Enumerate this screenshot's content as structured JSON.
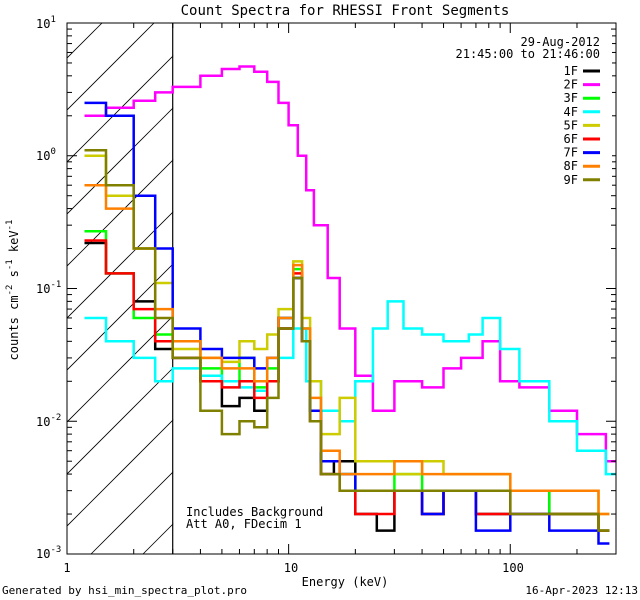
{
  "chart_data": {
    "type": "line",
    "title": "Count Spectra for RHESSI Front Segments",
    "xlabel": "Energy (keV)",
    "ylabel": "counts cm",
    "ylabel_exp1": "-2",
    "ylabel_mid": " s",
    "ylabel_exp2": "-1",
    "ylabel_end": " keV",
    "ylabel_exp3": "-1",
    "x_scale": "log",
    "y_scale": "log",
    "xlim": [
      1,
      300
    ],
    "ylim": [
      0.001,
      10
    ],
    "x_tick_labels": [
      {
        "value": 1,
        "label": "1"
      },
      {
        "value": 10,
        "label": "10"
      },
      {
        "value": 100,
        "label": "100"
      }
    ],
    "y_tick_labels": [
      {
        "value": 10,
        "base": "10",
        "exp": "1"
      },
      {
        "value": 1,
        "base": "10",
        "exp": "0"
      },
      {
        "value": 0.1,
        "base": "10",
        "exp": "-1"
      },
      {
        "value": 0.01,
        "base": "10",
        "exp": "-2"
      },
      {
        "value": 0.001,
        "base": "10",
        "exp": "-3"
      }
    ],
    "hatched_region_max_energy": 3,
    "date": "29-Aug-2012",
    "time_range": "21:45:00 to 21:46:00",
    "annotations": [
      "Includes Background",
      "Att A0, FDecim 1"
    ],
    "series": [
      {
        "name": "1F",
        "color": "#000000",
        "points": [
          [
            1.2,
            0.22
          ],
          [
            1.5,
            0.13
          ],
          [
            2.0,
            0.08
          ],
          [
            2.5,
            0.035
          ],
          [
            3.0,
            0.03
          ],
          [
            4.0,
            0.02
          ],
          [
            5.0,
            0.013
          ],
          [
            6.0,
            0.015
          ],
          [
            7.0,
            0.012
          ],
          [
            8.0,
            0.02
          ],
          [
            9.0,
            0.05
          ],
          [
            10.5,
            0.12
          ],
          [
            11.5,
            0.04
          ],
          [
            12.5,
            0.01
          ],
          [
            14,
            0.004
          ],
          [
            16,
            0.005
          ],
          [
            20,
            0.002
          ],
          [
            25,
            0.0015
          ],
          [
            30,
            0.003
          ],
          [
            40,
            0.002
          ],
          [
            50,
            0.003
          ],
          [
            70,
            0.002
          ],
          [
            100,
            0.003
          ],
          [
            150,
            0.002
          ],
          [
            250,
            0.0015
          ]
        ]
      },
      {
        "name": "2F",
        "color": "#ff00ff",
        "points": [
          [
            1.2,
            2.0
          ],
          [
            1.5,
            2.3
          ],
          [
            2.0,
            2.6
          ],
          [
            2.5,
            3.0
          ],
          [
            3.0,
            3.3
          ],
          [
            4.0,
            4.0
          ],
          [
            5.0,
            4.5
          ],
          [
            6.0,
            4.7
          ],
          [
            7.0,
            4.3
          ],
          [
            8.0,
            3.6
          ],
          [
            9.0,
            2.5
          ],
          [
            10,
            1.7
          ],
          [
            11,
            1.0
          ],
          [
            12,
            0.55
          ],
          [
            13,
            0.3
          ],
          [
            15,
            0.12
          ],
          [
            17,
            0.05
          ],
          [
            20,
            0.022
          ],
          [
            24,
            0.012
          ],
          [
            30,
            0.02
          ],
          [
            40,
            0.018
          ],
          [
            50,
            0.025
          ],
          [
            60,
            0.03
          ],
          [
            75,
            0.04
          ],
          [
            90,
            0.02
          ],
          [
            110,
            0.018
          ],
          [
            150,
            0.012
          ],
          [
            200,
            0.008
          ],
          [
            270,
            0.005
          ]
        ]
      },
      {
        "name": "3F",
        "color": "#00ff00",
        "points": [
          [
            1.2,
            0.27
          ],
          [
            1.5,
            0.13
          ],
          [
            2.0,
            0.06
          ],
          [
            2.5,
            0.045
          ],
          [
            3.0,
            0.04
          ],
          [
            4.0,
            0.025
          ],
          [
            5.0,
            0.02
          ],
          [
            6.0,
            0.03
          ],
          [
            7.0,
            0.018
          ],
          [
            8.0,
            0.025
          ],
          [
            9.0,
            0.06
          ],
          [
            10.5,
            0.14
          ],
          [
            11.5,
            0.05
          ],
          [
            12.5,
            0.012
          ],
          [
            14,
            0.005
          ],
          [
            17,
            0.004
          ],
          [
            20,
            0.003
          ],
          [
            30,
            0.004
          ],
          [
            40,
            0.003
          ],
          [
            50,
            0.003
          ],
          [
            70,
            0.003
          ],
          [
            100,
            0.003
          ],
          [
            150,
            0.002
          ],
          [
            250,
            0.0015
          ]
        ]
      },
      {
        "name": "4F",
        "color": "#00ffff",
        "points": [
          [
            1.2,
            0.06
          ],
          [
            1.5,
            0.04
          ],
          [
            2.0,
            0.03
          ],
          [
            2.5,
            0.02
          ],
          [
            3.0,
            0.025
          ],
          [
            4.0,
            0.022
          ],
          [
            5.0,
            0.02
          ],
          [
            6.0,
            0.018
          ],
          [
            7.0,
            0.017
          ],
          [
            8.0,
            0.02
          ],
          [
            9.0,
            0.03
          ],
          [
            10.5,
            0.05
          ],
          [
            12,
            0.02
          ],
          [
            14,
            0.012
          ],
          [
            17,
            0.01
          ],
          [
            20,
            0.02
          ],
          [
            24,
            0.05
          ],
          [
            28,
            0.08
          ],
          [
            33,
            0.05
          ],
          [
            40,
            0.045
          ],
          [
            50,
            0.04
          ],
          [
            65,
            0.045
          ],
          [
            75,
            0.06
          ],
          [
            90,
            0.035
          ],
          [
            110,
            0.02
          ],
          [
            150,
            0.01
          ],
          [
            200,
            0.006
          ],
          [
            270,
            0.004
          ]
        ]
      },
      {
        "name": "5F",
        "color": "#cccc00",
        "points": [
          [
            1.2,
            1.0
          ],
          [
            1.5,
            0.5
          ],
          [
            2.0,
            0.2
          ],
          [
            2.5,
            0.11
          ],
          [
            3.0,
            0.035
          ],
          [
            4.0,
            0.03
          ],
          [
            5.0,
            0.028
          ],
          [
            6.0,
            0.04
          ],
          [
            7.0,
            0.035
          ],
          [
            8.0,
            0.045
          ],
          [
            9.0,
            0.07
          ],
          [
            10.5,
            0.16
          ],
          [
            11.5,
            0.06
          ],
          [
            12.5,
            0.02
          ],
          [
            14,
            0.008
          ],
          [
            17,
            0.015
          ],
          [
            20,
            0.005
          ],
          [
            30,
            0.004
          ],
          [
            40,
            0.005
          ],
          [
            50,
            0.004
          ],
          [
            70,
            0.004
          ],
          [
            100,
            0.003
          ],
          [
            150,
            0.003
          ],
          [
            250,
            0.002
          ]
        ]
      },
      {
        "name": "6F",
        "color": "#ff0000",
        "points": [
          [
            1.2,
            0.23
          ],
          [
            1.5,
            0.13
          ],
          [
            2.0,
            0.07
          ],
          [
            2.5,
            0.04
          ],
          [
            3.0,
            0.03
          ],
          [
            4.0,
            0.02
          ],
          [
            5.0,
            0.018
          ],
          [
            6.0,
            0.02
          ],
          [
            7.0,
            0.015
          ],
          [
            8.0,
            0.02
          ],
          [
            9.0,
            0.05
          ],
          [
            10.5,
            0.13
          ],
          [
            11.5,
            0.04
          ],
          [
            12.5,
            0.01
          ],
          [
            14,
            0.004
          ],
          [
            17,
            0.003
          ],
          [
            20,
            0.002
          ],
          [
            30,
            0.003
          ],
          [
            40,
            0.002
          ],
          [
            50,
            0.003
          ],
          [
            70,
            0.002
          ],
          [
            100,
            0.002
          ],
          [
            150,
            0.002
          ],
          [
            250,
            0.0015
          ]
        ]
      },
      {
        "name": "7F",
        "color": "#0000ff",
        "points": [
          [
            1.2,
            2.5
          ],
          [
            1.5,
            2.0
          ],
          [
            2.0,
            0.5
          ],
          [
            2.5,
            0.2
          ],
          [
            3.0,
            0.05
          ],
          [
            4.0,
            0.035
          ],
          [
            5.0,
            0.03
          ],
          [
            6.0,
            0.03
          ],
          [
            7.0,
            0.025
          ],
          [
            8.0,
            0.03
          ],
          [
            9.0,
            0.06
          ],
          [
            10.5,
            0.12
          ],
          [
            11.5,
            0.04
          ],
          [
            12.5,
            0.012
          ],
          [
            14,
            0.005
          ],
          [
            17,
            0.004
          ],
          [
            20,
            0.003
          ],
          [
            30,
            0.003
          ],
          [
            40,
            0.002
          ],
          [
            50,
            0.003
          ],
          [
            70,
            0.0015
          ],
          [
            100,
            0.002
          ],
          [
            150,
            0.0015
          ],
          [
            250,
            0.0012
          ]
        ]
      },
      {
        "name": "8F",
        "color": "#ff8000",
        "points": [
          [
            1.2,
            0.6
          ],
          [
            1.5,
            0.4
          ],
          [
            2.0,
            0.2
          ],
          [
            2.5,
            0.07
          ],
          [
            3.0,
            0.04
          ],
          [
            4.0,
            0.03
          ],
          [
            5.0,
            0.025
          ],
          [
            6.0,
            0.025
          ],
          [
            7.0,
            0.02
          ],
          [
            8.0,
            0.03
          ],
          [
            9.0,
            0.06
          ],
          [
            10.5,
            0.15
          ],
          [
            11.5,
            0.05
          ],
          [
            12.5,
            0.015
          ],
          [
            14,
            0.006
          ],
          [
            17,
            0.004
          ],
          [
            20,
            0.004
          ],
          [
            30,
            0.005
          ],
          [
            40,
            0.004
          ],
          [
            50,
            0.004
          ],
          [
            70,
            0.004
          ],
          [
            100,
            0.003
          ],
          [
            150,
            0.003
          ],
          [
            250,
            0.002
          ]
        ]
      },
      {
        "name": "9F",
        "color": "#808000",
        "points": [
          [
            1.2,
            1.1
          ],
          [
            1.5,
            0.6
          ],
          [
            2.0,
            0.2
          ],
          [
            2.5,
            0.06
          ],
          [
            3.0,
            0.03
          ],
          [
            4.0,
            0.012
          ],
          [
            5.0,
            0.008
          ],
          [
            6.0,
            0.01
          ],
          [
            7.0,
            0.009
          ],
          [
            8.0,
            0.015
          ],
          [
            9.0,
            0.05
          ],
          [
            10.5,
            0.12
          ],
          [
            11.5,
            0.04
          ],
          [
            12.5,
            0.01
          ],
          [
            14,
            0.004
          ],
          [
            17,
            0.003
          ],
          [
            20,
            0.003
          ],
          [
            30,
            0.003
          ],
          [
            40,
            0.003
          ],
          [
            50,
            0.003
          ],
          [
            70,
            0.003
          ],
          [
            100,
            0.002
          ],
          [
            150,
            0.002
          ],
          [
            250,
            0.0015
          ]
        ]
      }
    ]
  },
  "footer": {
    "left": "Generated by hsi_min_spectra_plot.pro",
    "right": "16-Apr-2023 12:13"
  }
}
